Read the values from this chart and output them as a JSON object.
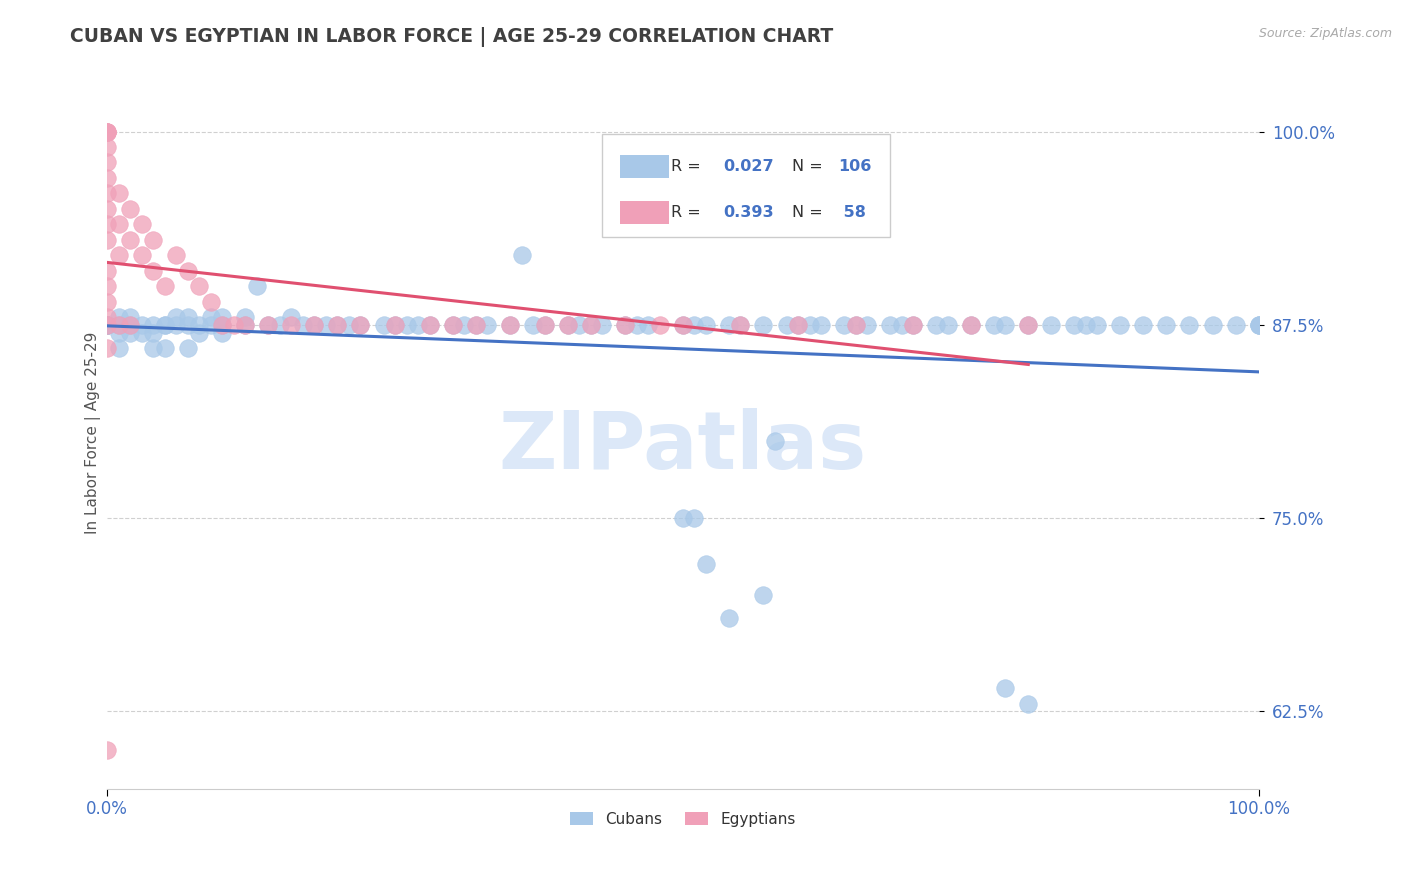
{
  "title": "CUBAN VS EGYPTIAN IN LABOR FORCE | AGE 25-29 CORRELATION CHART",
  "source_text": "Source: ZipAtlas.com",
  "ylabel": "In Labor Force | Age 25-29",
  "xlim": [
    0.0,
    1.0
  ],
  "ylim": [
    0.575,
    1.035
  ],
  "yticks": [
    0.625,
    0.75,
    0.875,
    1.0
  ],
  "ytick_labels": [
    "62.5%",
    "75.0%",
    "87.5%",
    "100.0%"
  ],
  "xticks": [
    0.0,
    1.0
  ],
  "xtick_labels": [
    "0.0%",
    "100.0%"
  ],
  "legend_cubans_R": "0.027",
  "legend_cubans_N": "106",
  "legend_egyptians_R": "0.393",
  "legend_egyptians_N": " 58",
  "color_cuban": "#a8c8e8",
  "color_egyptian": "#f0a0b8",
  "color_cuban_line": "#4472c4",
  "color_egyptian_line": "#e05070",
  "background_color": "#ffffff",
  "grid_color": "#d0d0d0",
  "title_color": "#404040",
  "axis_label_color": "#4472c4",
  "watermark_color": "#dce8f8",
  "cuban_x": [
    0.0,
    0.0,
    0.0,
    0.0,
    0.0,
    0.01,
    0.01,
    0.01,
    0.01,
    0.02,
    0.02,
    0.02,
    0.03,
    0.03,
    0.04,
    0.04,
    0.04,
    0.05,
    0.05,
    0.05,
    0.06,
    0.06,
    0.07,
    0.07,
    0.07,
    0.08,
    0.08,
    0.09,
    0.09,
    0.1,
    0.1,
    0.1,
    0.12,
    0.12,
    0.13,
    0.14,
    0.15,
    0.16,
    0.17,
    0.18,
    0.19,
    0.2,
    0.21,
    0.22,
    0.24,
    0.25,
    0.26,
    0.27,
    0.28,
    0.3,
    0.31,
    0.32,
    0.33,
    0.35,
    0.36,
    0.37,
    0.38,
    0.4,
    0.41,
    0.42,
    0.43,
    0.45,
    0.46,
    0.47,
    0.5,
    0.51,
    0.52,
    0.54,
    0.55,
    0.57,
    0.58,
    0.59,
    0.6,
    0.61,
    0.62,
    0.64,
    0.65,
    0.66,
    0.68,
    0.69,
    0.7,
    0.72,
    0.73,
    0.75,
    0.77,
    0.78,
    0.8,
    0.82,
    0.84,
    0.85,
    0.86,
    0.88,
    0.9,
    0.92,
    0.94,
    0.96,
    0.98,
    1.0,
    1.0,
    1.0
  ],
  "cuban_y": [
    0.875,
    0.875,
    0.875,
    0.875,
    0.875,
    0.88,
    0.87,
    0.875,
    0.86,
    0.875,
    0.87,
    0.88,
    0.875,
    0.87,
    0.875,
    0.86,
    0.87,
    0.875,
    0.86,
    0.875,
    0.88,
    0.875,
    0.875,
    0.88,
    0.86,
    0.87,
    0.875,
    0.88,
    0.875,
    0.875,
    0.87,
    0.88,
    0.875,
    0.88,
    0.9,
    0.875,
    0.875,
    0.88,
    0.875,
    0.875,
    0.875,
    0.875,
    0.875,
    0.875,
    0.875,
    0.875,
    0.875,
    0.875,
    0.875,
    0.875,
    0.875,
    0.875,
    0.875,
    0.875,
    0.92,
    0.875,
    0.875,
    0.875,
    0.875,
    0.875,
    0.875,
    0.875,
    0.875,
    0.875,
    0.875,
    0.875,
    0.875,
    0.875,
    0.875,
    0.875,
    0.8,
    0.875,
    0.875,
    0.875,
    0.875,
    0.875,
    0.875,
    0.875,
    0.875,
    0.875,
    0.875,
    0.875,
    0.875,
    0.875,
    0.875,
    0.875,
    0.875,
    0.875,
    0.875,
    0.875,
    0.875,
    0.875,
    0.875,
    0.875,
    0.875,
    0.875,
    0.875,
    0.875,
    0.875,
    0.875
  ],
  "cuban_y_extra": [
    0.75,
    0.75,
    0.72,
    0.685,
    0.7,
    0.64,
    0.63
  ],
  "cuban_x_extra": [
    0.5,
    0.51,
    0.52,
    0.54,
    0.57,
    0.78,
    0.8
  ],
  "egyptian_x": [
    0.0,
    0.0,
    0.0,
    0.0,
    0.0,
    0.0,
    0.0,
    0.0,
    0.0,
    0.0,
    0.0,
    0.0,
    0.0,
    0.0,
    0.0,
    0.0,
    0.0,
    0.01,
    0.01,
    0.01,
    0.01,
    0.02,
    0.02,
    0.02,
    0.03,
    0.03,
    0.04,
    0.04,
    0.05,
    0.06,
    0.07,
    0.08,
    0.09,
    0.1,
    0.11,
    0.12,
    0.14,
    0.16,
    0.18,
    0.2,
    0.22,
    0.25,
    0.28,
    0.3,
    0.32,
    0.35,
    0.38,
    0.4,
    0.42,
    0.45,
    0.48,
    0.5,
    0.55,
    0.6,
    0.65,
    0.7,
    0.75,
    0.8
  ],
  "egyptian_y": [
    1.0,
    1.0,
    1.0,
    1.0,
    0.99,
    0.98,
    0.97,
    0.96,
    0.95,
    0.94,
    0.93,
    0.91,
    0.9,
    0.89,
    0.88,
    0.875,
    0.86,
    0.96,
    0.94,
    0.92,
    0.875,
    0.95,
    0.93,
    0.875,
    0.94,
    0.92,
    0.93,
    0.91,
    0.9,
    0.92,
    0.91,
    0.9,
    0.89,
    0.875,
    0.875,
    0.875,
    0.875,
    0.875,
    0.875,
    0.875,
    0.875,
    0.875,
    0.875,
    0.875,
    0.875,
    0.875,
    0.875,
    0.875,
    0.875,
    0.875,
    0.875,
    0.875,
    0.875,
    0.875,
    0.875,
    0.875,
    0.875,
    0.875
  ],
  "egyptian_extra_x": [
    0.0
  ],
  "egyptian_extra_y": [
    0.6
  ]
}
